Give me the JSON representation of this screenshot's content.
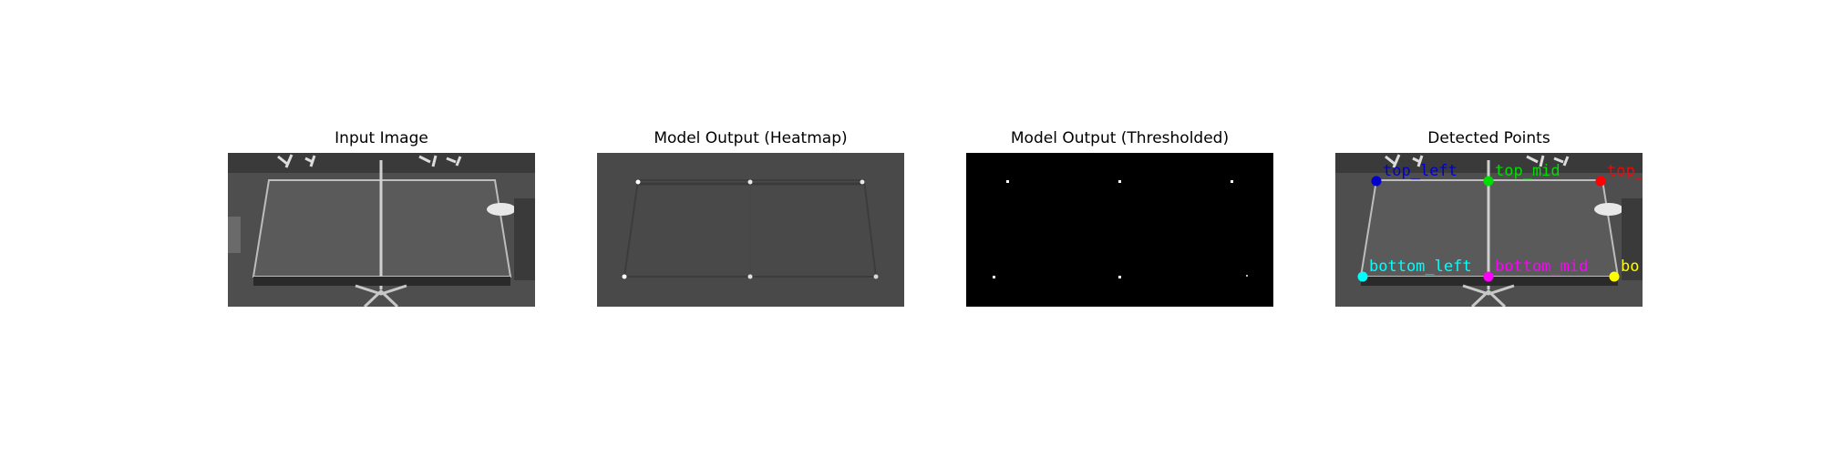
{
  "panels": [
    {
      "title": "Input Image"
    },
    {
      "title": "Model Output (Heatmap)"
    },
    {
      "title": "Model Output (Thresholded)"
    },
    {
      "title": "Detected Points"
    }
  ],
  "detected_points": [
    {
      "label": "top_left",
      "color": "#0000cc"
    },
    {
      "label": "top_mid",
      "color": "#00dd00"
    },
    {
      "label": "top_",
      "color": "#ff0000"
    },
    {
      "label": "bottom_left",
      "color": "#00ffff"
    },
    {
      "label": "bottom_mid",
      "color": "#ff00ff"
    },
    {
      "label": "bo",
      "color": "#ffff00"
    }
  ]
}
